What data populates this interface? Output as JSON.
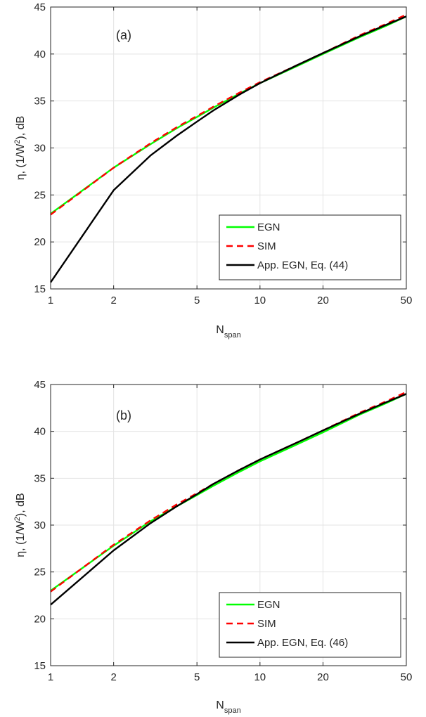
{
  "chart_data": [
    {
      "type": "line",
      "panel_label": "(a)",
      "xlabel": {
        "base": "N",
        "sub": "span"
      },
      "ylabel": {
        "pre": "η, (1/W",
        "sup": "2",
        "post": "), dB"
      },
      "x_scale": "log",
      "xlim": [
        1,
        50
      ],
      "ylim": [
        15,
        45
      ],
      "xticks": [
        1,
        2,
        5,
        10,
        20,
        50
      ],
      "xtick_labels": [
        "1",
        "2",
        "5",
        "10",
        "20",
        "50"
      ],
      "yticks": [
        15,
        20,
        25,
        30,
        35,
        40,
        45
      ],
      "ytick_labels": [
        "15",
        "20",
        "25",
        "30",
        "35",
        "40",
        "45"
      ],
      "grid": true,
      "legend_position": "bottom-right",
      "series": [
        {
          "name": "EGN",
          "color": "#00ff00",
          "style": "solid",
          "x": [
            1,
            2,
            3,
            4,
            5,
            6,
            8,
            10,
            15,
            20,
            30,
            40,
            50
          ],
          "y": [
            23.0,
            27.9,
            30.4,
            32.1,
            33.3,
            34.3,
            35.8,
            36.9,
            38.7,
            40.0,
            41.8,
            43.0,
            44.0
          ]
        },
        {
          "name": "SIM",
          "color": "#ff0000",
          "style": "dashed",
          "x": [
            1,
            2,
            3,
            4,
            5,
            6,
            8,
            10,
            15,
            20,
            30,
            40,
            50
          ],
          "y": [
            22.9,
            27.9,
            30.5,
            32.2,
            33.4,
            34.4,
            35.9,
            37.0,
            38.8,
            40.1,
            42.0,
            43.2,
            44.2
          ]
        },
        {
          "name": "App. EGN, Eq. (44)",
          "color": "#000000",
          "style": "solid",
          "x": [
            1,
            2,
            3,
            4,
            5,
            6,
            8,
            10,
            15,
            20,
            30,
            40,
            50
          ],
          "y": [
            15.7,
            25.5,
            29.2,
            31.3,
            32.8,
            34.0,
            35.7,
            36.9,
            38.8,
            40.1,
            41.9,
            43.1,
            44.0
          ]
        }
      ]
    },
    {
      "type": "line",
      "panel_label": "(b)",
      "xlabel": {
        "base": "N",
        "sub": "span"
      },
      "ylabel": {
        "pre": "η, (1/W",
        "sup": "2",
        "post": "), dB"
      },
      "x_scale": "log",
      "xlim": [
        1,
        50
      ],
      "ylim": [
        15,
        45
      ],
      "xticks": [
        1,
        2,
        5,
        10,
        20,
        50
      ],
      "xtick_labels": [
        "1",
        "2",
        "5",
        "10",
        "20",
        "50"
      ],
      "yticks": [
        15,
        20,
        25,
        30,
        35,
        40,
        45
      ],
      "ytick_labels": [
        "15",
        "20",
        "25",
        "30",
        "35",
        "40",
        "45"
      ],
      "grid": true,
      "legend_position": "bottom-right",
      "series": [
        {
          "name": "EGN",
          "color": "#00ff00",
          "style": "solid",
          "x": [
            1,
            2,
            3,
            4,
            5,
            6,
            8,
            10,
            15,
            20,
            30,
            40,
            50
          ],
          "y": [
            23.0,
            27.8,
            30.4,
            32.0,
            33.2,
            34.2,
            35.7,
            36.8,
            38.6,
            39.9,
            41.8,
            43.0,
            44.0
          ]
        },
        {
          "name": "SIM",
          "color": "#ff0000",
          "style": "dashed",
          "x": [
            1,
            2,
            3,
            4,
            5,
            6,
            8,
            10,
            15,
            20,
            30,
            40,
            50
          ],
          "y": [
            22.9,
            27.9,
            30.5,
            32.2,
            33.4,
            34.4,
            35.9,
            37.0,
            38.8,
            40.1,
            42.0,
            43.2,
            44.2
          ]
        },
        {
          "name": "App. EGN, Eq. (46)",
          "color": "#000000",
          "style": "solid",
          "x": [
            1,
            2,
            3,
            4,
            5,
            6,
            8,
            10,
            15,
            20,
            30,
            40,
            50
          ],
          "y": [
            21.5,
            27.3,
            30.2,
            32.0,
            33.3,
            34.4,
            35.9,
            37.0,
            38.8,
            40.1,
            41.9,
            43.1,
            44.0
          ]
        }
      ]
    }
  ]
}
